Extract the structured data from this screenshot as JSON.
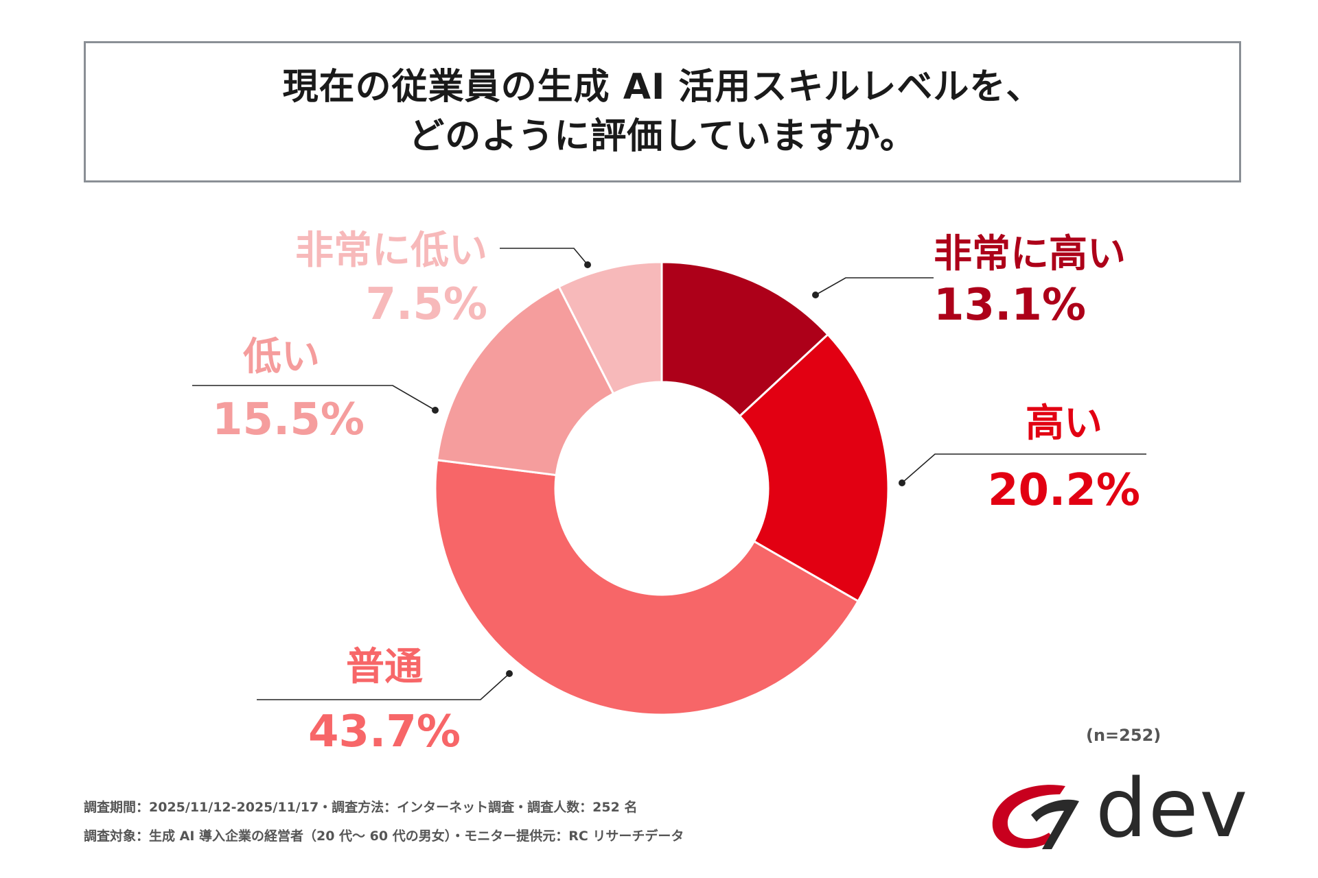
{
  "title": {
    "line1": "現在の従業員の生成 AI 活用スキルレベルを、",
    "line2": "どのように評価していますか。"
  },
  "chart_data": {
    "type": "pie",
    "donut": true,
    "slices": [
      {
        "label": "非常に高い",
        "value": 13.1,
        "value_label": "13.1%",
        "color": "#ad0019"
      },
      {
        "label": "高い",
        "value": 20.2,
        "value_label": "20.2%",
        "color": "#e20012"
      },
      {
        "label": "普通",
        "value": 43.7,
        "value_label": "43.7%",
        "color": "#f76668"
      },
      {
        "label": "低い",
        "value": 15.5,
        "value_label": "15.5%",
        "color": "#f59d9d"
      },
      {
        "label": "非常に低い",
        "value": 7.5,
        "value_label": "7.5%",
        "color": "#f7b9ba"
      }
    ]
  },
  "sample_note": "(n=252)",
  "footer": {
    "line1": "調査期間：2025/11/12-2025/11/17・調査方法：インターネット調査・調査人数：252 名",
    "line2": "調査対象：生成 AI 導入企業の経営者（20 代〜 60 代の男女）・モニター提供元：RC リサーチデータ"
  },
  "logo": {
    "text": "dev",
    "color": "#c8001e"
  }
}
